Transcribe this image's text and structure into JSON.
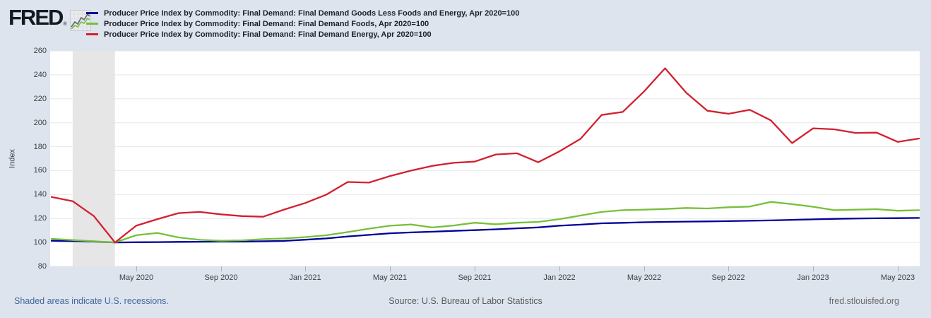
{
  "header": {
    "logo_text": "FRED",
    "registered_mark": "®"
  },
  "chart_data": {
    "type": "line",
    "title": "",
    "xlabel": "",
    "ylabel": "Index",
    "ylim": [
      80,
      260
    ],
    "y_ticks": [
      80,
      100,
      120,
      140,
      160,
      180,
      200,
      220,
      240,
      260
    ],
    "grid": "horizontal",
    "legend_position": "top",
    "x_unit": "month",
    "months": [
      "Jan 2020",
      "Feb 2020",
      "Mar 2020",
      "Apr 2020",
      "May 2020",
      "Jun 2020",
      "Jul 2020",
      "Aug 2020",
      "Sep 2020",
      "Oct 2020",
      "Nov 2020",
      "Dec 2020",
      "Jan 2021",
      "Feb 2021",
      "Mar 2021",
      "Apr 2021",
      "May 2021",
      "Jun 2021",
      "Jul 2021",
      "Aug 2021",
      "Sep 2021",
      "Oct 2021",
      "Nov 2021",
      "Dec 2021",
      "Jan 2022",
      "Feb 2022",
      "Mar 2022",
      "Apr 2022",
      "May 2022",
      "Jun 2022",
      "Jul 2022",
      "Aug 2022",
      "Sep 2022",
      "Oct 2022",
      "Nov 2022",
      "Dec 2022",
      "Jan 2023",
      "Feb 2023",
      "Mar 2023",
      "Apr 2023",
      "May 2023",
      "Jun 2023"
    ],
    "x_ticks": [
      {
        "label": "May 2020",
        "month_index": 4
      },
      {
        "label": "Sep 2020",
        "month_index": 8
      },
      {
        "label": "Jan 2021",
        "month_index": 12
      },
      {
        "label": "May 2021",
        "month_index": 16
      },
      {
        "label": "Sep 2021",
        "month_index": 20
      },
      {
        "label": "Jan 2022",
        "month_index": 24
      },
      {
        "label": "May 2022",
        "month_index": 28
      },
      {
        "label": "Sep 2022",
        "month_index": 32
      },
      {
        "label": "Jan 2023",
        "month_index": 36
      },
      {
        "label": "May 2023",
        "month_index": 40
      }
    ],
    "recession_band": {
      "label": "U.S. recession",
      "from": "Feb 2020",
      "to": "Apr 2020",
      "from_index": 1,
      "to_index": 3,
      "color": "#e6e6e6"
    },
    "series": [
      {
        "id": "goods-less-foods-energy",
        "name": "Producer Price Index by Commodity: Final Demand: Final Demand Goods Less Foods and Energy, Apr 2020=100",
        "color": "#000099",
        "values": [
          101.4,
          101.2,
          100.8,
          100,
          100.2,
          100.3,
          100.5,
          100.6,
          100.7,
          100.8,
          101,
          101.3,
          102.3,
          103.4,
          105,
          106.3,
          107.7,
          108.4,
          109,
          109.7,
          110.3,
          111,
          111.8,
          112.6,
          114,
          114.9,
          116,
          116.4,
          116.9,
          117.2,
          117.4,
          117.6,
          117.8,
          118.1,
          118.4,
          118.9,
          119.3,
          119.7,
          120,
          120.2,
          120.3,
          120.5
        ]
      },
      {
        "id": "foods",
        "name": "Producer Price Index by Commodity: Final Demand: Final Demand Foods, Apr 2020=100",
        "color": "#76c03b",
        "values": [
          103,
          102,
          101,
          100,
          106,
          108,
          104.2,
          102.2,
          101.4,
          101.8,
          102.8,
          103.4,
          104.5,
          106,
          108.7,
          111.5,
          114,
          115,
          112.5,
          114.2,
          116.5,
          115.2,
          116.5,
          117.2,
          119.5,
          122.5,
          125.5,
          127,
          127.4,
          128,
          128.8,
          128.4,
          129.4,
          130,
          133.9,
          132,
          129.8,
          127,
          127.4,
          127.8,
          126.5,
          127
        ]
      },
      {
        "id": "energy",
        "name": "Producer Price Index by Commodity: Final Demand: Final Demand Energy, Apr 2020=100",
        "color": "#d2202f",
        "values": [
          138,
          134.5,
          122,
          100,
          114,
          119.5,
          124.5,
          125.5,
          123.5,
          122,
          121.5,
          127.5,
          133,
          140,
          150.5,
          150,
          155.5,
          160,
          164,
          166.5,
          167.5,
          173.5,
          174.5,
          167,
          176,
          186.5,
          206.5,
          209,
          226,
          245.5,
          225,
          210,
          207.5,
          210.8,
          202,
          183,
          195.3,
          194.5,
          191.5,
          191.7,
          184,
          186.8
        ]
      }
    ]
  },
  "footer": {
    "notes": "Shaded areas indicate U.S. recessions.",
    "source": "Source: U.S. Bureau of Labor Statistics",
    "site": "fred.stlouisfed.org"
  }
}
